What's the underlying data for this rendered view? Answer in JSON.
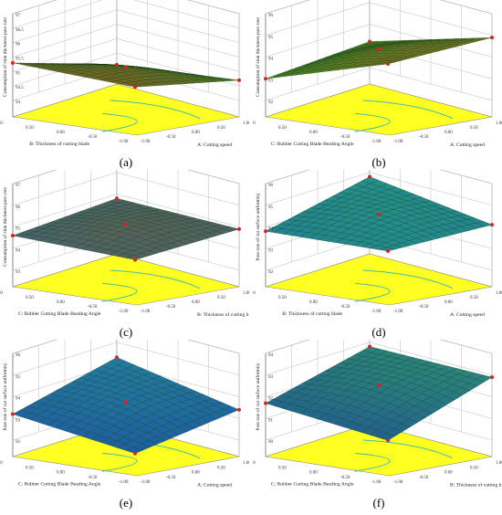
{
  "chart_data": [
    {
      "type": "surface3d",
      "panel_label": "(a)",
      "zlabel": "Consumption of skin thickness pass rate",
      "xlabel": "A: Cutting speed",
      "ylabel": "B: Thickness of cutting blade",
      "z_ticks": [
        "94",
        "94.5",
        "95",
        "95.5",
        "96",
        "96.5",
        "97"
      ],
      "zlim": [
        94,
        97
      ],
      "x_ticks": [
        "-1.00",
        "-0.50",
        "0.00",
        "0.50",
        "1.00"
      ],
      "y_ticks": [
        "-1.00",
        "-0.50",
        "0.00",
        "0.50",
        "1.00"
      ],
      "corner_values": [
        94.1,
        94.7,
        95.3,
        95.6
      ],
      "colors": {
        "low": "#2a8a2a",
        "high": "#c04020"
      }
    },
    {
      "type": "surface3d",
      "panel_label": "(b)",
      "zlabel": "Consumption of skin thickness pass rate",
      "xlabel": "A: Cutting speed",
      "ylabel": "C: Rubber Cutting Blade Beading Angle",
      "z_ticks": [
        "92",
        "93",
        "94",
        "95",
        "96"
      ],
      "zlim": [
        92,
        96
      ],
      "x_ticks": [
        "-1.00",
        "-0.50",
        "0.00",
        "0.50",
        "1.00"
      ],
      "y_ticks": [
        "-1.00",
        "-0.50",
        "0.00",
        "0.50",
        "1.00"
      ],
      "corner_values": [
        93.2,
        94.9,
        93.0,
        95.2
      ],
      "colors": {
        "low": "#2a8a2a",
        "high": "#8a6a20"
      }
    },
    {
      "type": "surface3d",
      "panel_label": "(c)",
      "zlabel": "Consumption of skin thickness pass rate",
      "xlabel": "B: Thickness of cutting blade",
      "ylabel": "C: Rubber Cutting Blade Beading Angle",
      "z_ticks": [
        "93",
        "94",
        "95",
        "96",
        "97"
      ],
      "zlim": [
        93,
        97
      ],
      "x_ticks": [
        "-1.00",
        "-0.50",
        "0.00",
        "0.50",
        "1.00"
      ],
      "y_ticks": [
        "-1.00",
        "-0.50",
        "0.00",
        "0.50",
        "1.00"
      ],
      "corner_values": [
        94.8,
        94.9,
        94.6,
        95.0
      ],
      "colors": {
        "low": "#1a6aa0",
        "high": "#8a5a20"
      }
    },
    {
      "type": "surface3d",
      "panel_label": "(d)",
      "zlabel": "Pass rate of cut surface uniformity",
      "xlabel": "A: Cutting speed",
      "ylabel": "B: Thickness of cutting blade",
      "z_ticks": [
        "92",
        "93",
        "94",
        "95",
        "96"
      ],
      "zlim": [
        92,
        96
      ],
      "x_ticks": [
        "-1.00",
        "-0.50",
        "0.00",
        "0.50",
        "1.00"
      ],
      "y_ticks": [
        "-1.00",
        "-0.50",
        "0.00",
        "0.50",
        "1.00"
      ],
      "corner_values": [
        94.8,
        94.1,
        93.8,
        94.4
      ],
      "colors": {
        "low": "#1a6aa0",
        "high": "#2aa080"
      }
    },
    {
      "type": "surface3d",
      "panel_label": "(e)",
      "zlabel": "Pass rate of cut surface uniformity",
      "xlabel": "A: Cutting speed",
      "ylabel": "C: Rubber Cutting Blade Beading Angle",
      "z_ticks": [
        "92",
        "93",
        "94",
        "95",
        "96"
      ],
      "zlim": [
        92,
        96
      ],
      "x_ticks": [
        "-1.00",
        "-0.50",
        "0.00",
        "0.50",
        "1.00"
      ],
      "y_ticks": [
        "-1.00",
        "-0.50",
        "0.00",
        "0.50",
        "1.00"
      ],
      "corner_values": [
        94.3,
        93.4,
        93.2,
        92.9
      ],
      "colors": {
        "low": "#1a4aa0",
        "high": "#2aa0a0"
      }
    },
    {
      "type": "surface3d",
      "panel_label": "(f)",
      "zlabel": "Pass rate of cut surface uniformity",
      "xlabel": "B: Thickness of cutting blade",
      "ylabel": "C: Rubber Cutting Blade Beading Angle",
      "z_ticks": [
        "90",
        "91",
        "92",
        "93",
        "94"
      ],
      "zlim": [
        90,
        94
      ],
      "x_ticks": [
        "-1.00",
        "-0.50",
        "0.00",
        "0.50",
        "1.00"
      ],
      "y_ticks": [
        "-1.00",
        "-0.50",
        "0.00",
        "0.50",
        "1.00"
      ],
      "corner_values": [
        92.8,
        92.9,
        91.7,
        91.5
      ],
      "colors": {
        "low": "#1a3aa0",
        "high": "#30a070"
      }
    }
  ]
}
